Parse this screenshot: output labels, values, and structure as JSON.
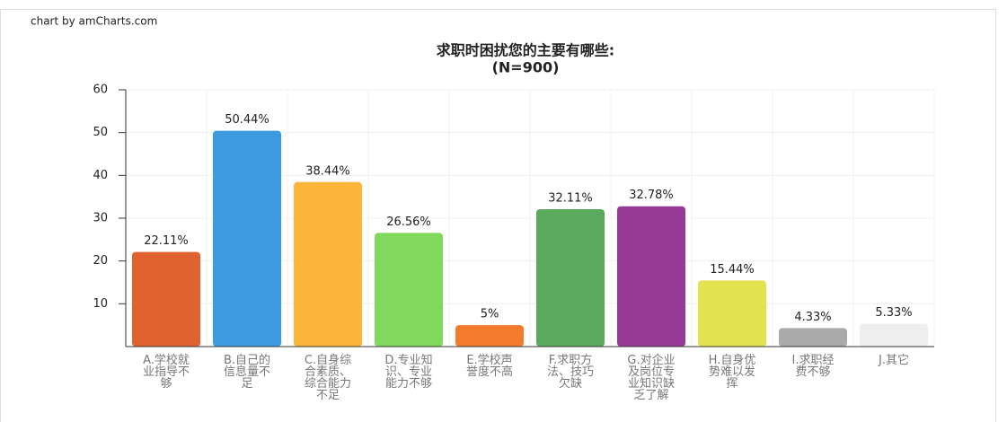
{
  "chart_data": {
    "type": "bar",
    "credit": "chart by amCharts.com",
    "title": "求职时困扰您的主要有哪些:",
    "subtitle": "(N=900)",
    "categories": [
      "A.学校就业指导不够",
      "B.自己的信息量不足",
      "C.自身综合素质、综合能力不足",
      "D.专业知识、专业能力不够",
      "E.学校声誉度不高",
      "F.求职方法、技巧欠缺",
      "G.对企业及岗位专业知识缺乏了解",
      "H.自身优势难以发挥",
      "I.求职经费不够",
      "J.其它"
    ],
    "values": [
      22.11,
      50.44,
      38.44,
      26.56,
      5,
      32.11,
      32.78,
      15.44,
      4.33,
      5.33
    ],
    "value_labels": [
      "22.11%",
      "50.44%",
      "38.44%",
      "26.56%",
      "5%",
      "32.11%",
      "32.78%",
      "15.44%",
      "4.33%",
      "5.33%"
    ],
    "colors": [
      "#e0622f",
      "#3d9ade",
      "#fbb63a",
      "#80d85c",
      "#f27c2b",
      "#5aaa5e",
      "#953b96",
      "#e3e34f",
      "#aaaaaa",
      "#eeeeee"
    ],
    "ylim": [
      0,
      60
    ],
    "yticks": [
      10,
      20,
      30,
      40,
      50,
      60
    ],
    "grid": true
  }
}
